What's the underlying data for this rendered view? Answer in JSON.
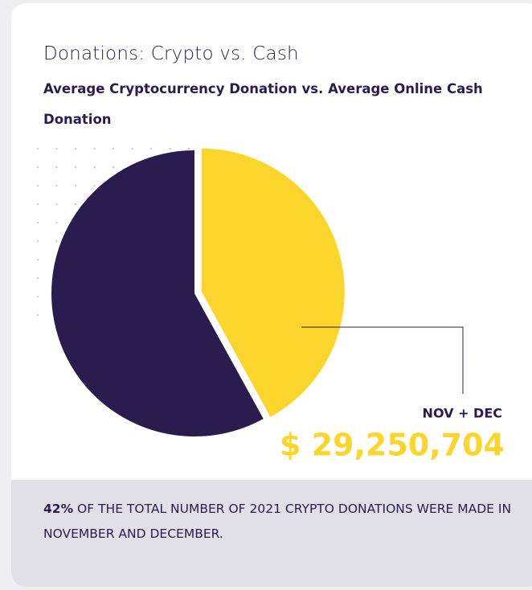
{
  "chart_data": {
    "type": "pie",
    "title": "Donations: Crypto vs. Cash",
    "subtitle": "Average Cryptocurrency Donation vs. Average Online Cash Donation",
    "values": [
      42,
      58
    ],
    "colors": [
      "#fcd52c",
      "#2a1c4e"
    ],
    "annotation": {
      "label": "NOV + DEC",
      "amount": "$ 29,250,704"
    },
    "footnote": {
      "highlight": "42%",
      "text": "OF THE TOTAL NUMBER OF 2021 CRYPTO DONATIONS WERE MADE IN NOVEMBER AND DECEMBER."
    }
  }
}
